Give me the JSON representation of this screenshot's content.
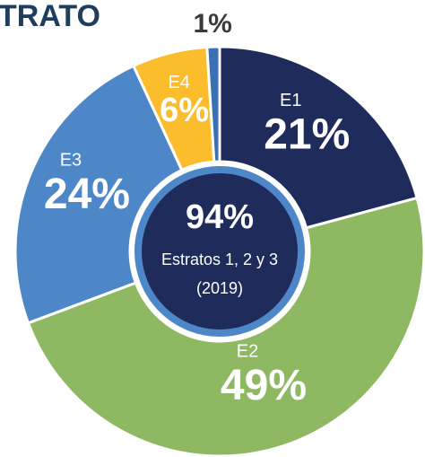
{
  "chart_data": {
    "type": "donut",
    "title": "TRATO",
    "categories": [
      "E1",
      "E2",
      "E3",
      "E4",
      null
    ],
    "values": [
      21,
      49,
      24,
      6,
      1
    ],
    "value_labels": [
      "21%",
      "49%",
      "24%",
      "6%",
      "1%"
    ],
    "colors": [
      "#1e2b5b",
      "#8fb862",
      "#4e87c8",
      "#fbbd2c",
      "#3d6fb3"
    ],
    "center_text": [
      "94%",
      "Estratos 1, 2 y 3",
      "(2019)"
    ]
  }
}
